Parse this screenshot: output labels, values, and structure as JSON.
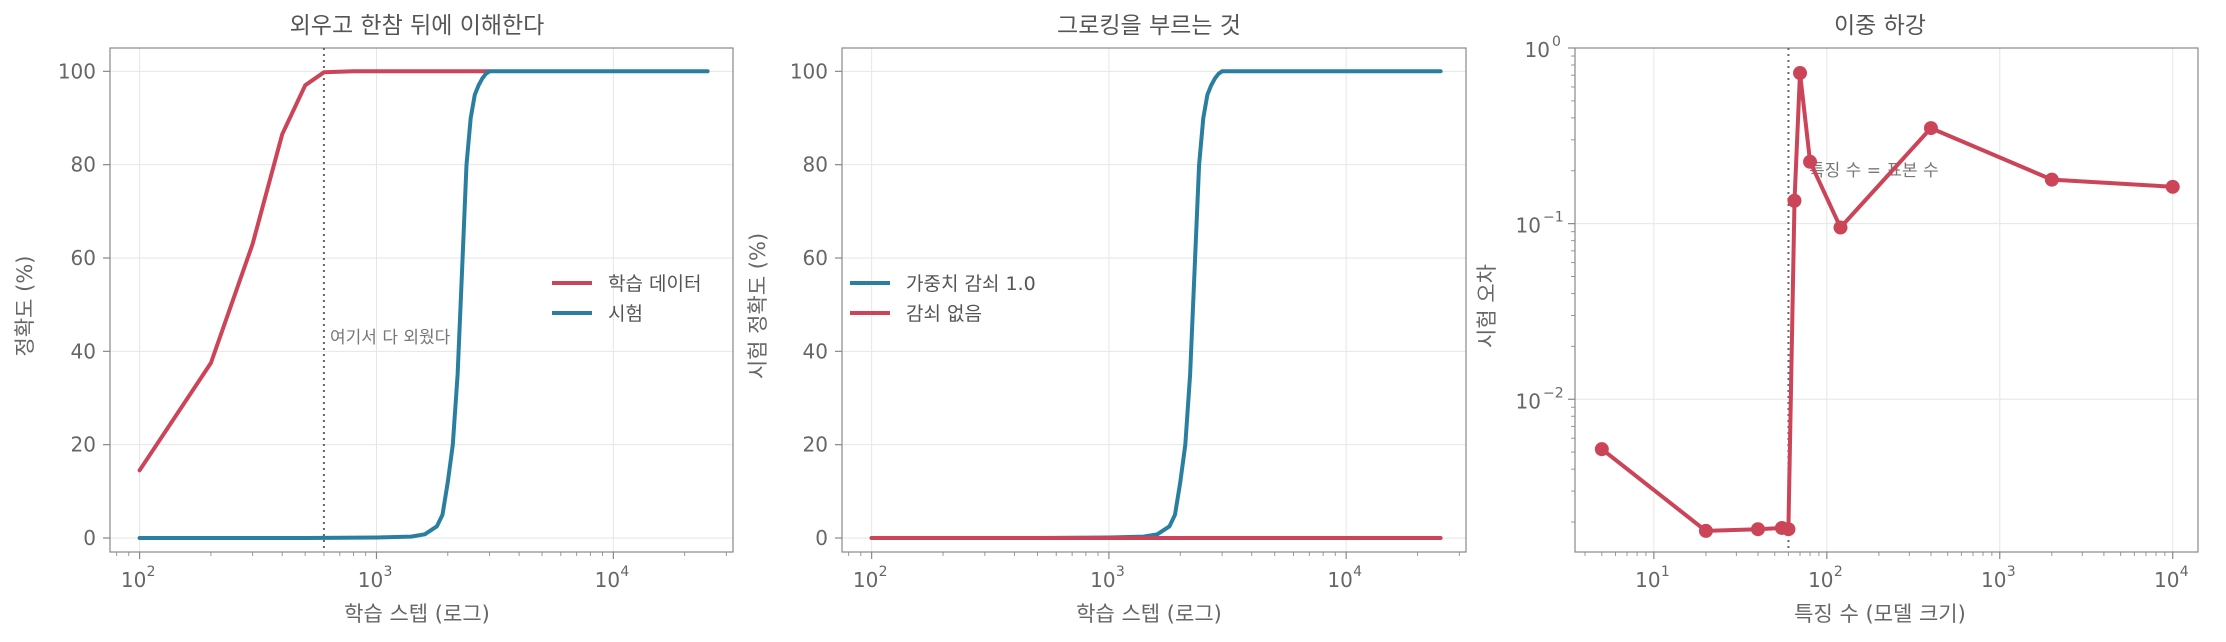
{
  "colors": {
    "red": "#cc4458",
    "blue": "#2a7fa0",
    "guide": "#666666"
  },
  "chart_data": [
    {
      "type": "line",
      "title": "외우고 한참 뒤에 이해한다",
      "xlabel": "학습 스텝 (로그)",
      "ylabel": "정확도 (%)",
      "xscale": "log",
      "xlim": [
        75,
        32000
      ],
      "ylim": [
        -3,
        105
      ],
      "yticks": [
        "0",
        "20",
        "40",
        "60",
        "80",
        "100"
      ],
      "xticks": [
        {
          "base": "10",
          "exp": "2"
        },
        {
          "base": "10",
          "exp": "3"
        },
        {
          "base": "10",
          "exp": "4"
        }
      ],
      "grid": true,
      "legend_position": "center-right",
      "vline": 600,
      "annotation": "여기서 다 외웠다",
      "series": [
        {
          "name": "학습 데이터",
          "color": "red",
          "x": [
            100,
            200,
            300,
            400,
            500,
            600,
            800,
            1000,
            1500,
            2000,
            3000
          ],
          "y": [
            14.5,
            37.5,
            63,
            86.5,
            97,
            99.8,
            100,
            100,
            100,
            100,
            100
          ]
        },
        {
          "name": "시험",
          "color": "blue",
          "x": [
            100,
            500,
            1000,
            1400,
            1600,
            1800,
            1900,
            2000,
            2100,
            2200,
            2300,
            2400,
            2500,
            2600,
            2700,
            2800,
            2900,
            3000,
            5000,
            10000,
            25000
          ],
          "y": [
            0,
            0,
            0.1,
            0.3,
            0.8,
            2.5,
            5,
            12,
            20,
            35,
            58,
            80,
            90,
            95,
            97,
            98.5,
            99.5,
            100,
            100,
            100,
            100
          ]
        }
      ]
    },
    {
      "type": "line",
      "title": "그로킹을 부르는 것",
      "xlabel": "학습 스텝 (로그)",
      "ylabel": "시험 정확도 (%)",
      "xscale": "log",
      "xlim": [
        75,
        32000
      ],
      "ylim": [
        -3,
        105
      ],
      "yticks": [
        "0",
        "20",
        "40",
        "60",
        "80",
        "100"
      ],
      "xticks": [
        {
          "base": "10",
          "exp": "2"
        },
        {
          "base": "10",
          "exp": "3"
        },
        {
          "base": "10",
          "exp": "4"
        }
      ],
      "grid": true,
      "legend_position": "center-left",
      "series": [
        {
          "name": "가중치 감쇠 1.0",
          "color": "blue",
          "x": [
            100,
            500,
            1000,
            1400,
            1600,
            1800,
            1900,
            2000,
            2100,
            2200,
            2300,
            2400,
            2500,
            2600,
            2700,
            2800,
            2900,
            3000,
            5000,
            10000,
            25000
          ],
          "y": [
            0,
            0,
            0.1,
            0.3,
            0.8,
            2.5,
            5,
            12,
            20,
            35,
            58,
            80,
            90,
            95,
            97,
            98.5,
            99.5,
            100,
            100,
            100,
            100
          ]
        },
        {
          "name": "감쇠 없음",
          "color": "red",
          "x": [
            100,
            1000,
            10000,
            25000
          ],
          "y": [
            0,
            0,
            0,
            0
          ]
        }
      ]
    },
    {
      "type": "line",
      "title": "이중 하강",
      "xlabel": "특징 수 (모델 크기)",
      "ylabel": "시험 오차",
      "xscale": "log",
      "yscale": "log",
      "xlim": [
        3.5,
        14000
      ],
      "ylim": [
        0.00135,
        1
      ],
      "xticks": [
        {
          "base": "10",
          "exp": "1"
        },
        {
          "base": "10",
          "exp": "2"
        },
        {
          "base": "10",
          "exp": "3"
        },
        {
          "base": "10",
          "exp": "4"
        }
      ],
      "yticks": [
        {
          "base": "10",
          "exp": "−2"
        },
        {
          "base": "10",
          "exp": "−1"
        },
        {
          "base": "10",
          "exp": "0"
        }
      ],
      "grid": true,
      "vline": 60,
      "annotation": "특징 수 = 표본 수",
      "series": [
        {
          "color": "red",
          "markers": true,
          "x": [
            5,
            20,
            40,
            55,
            60,
            65,
            70,
            80,
            120,
            400,
            2000,
            10000
          ],
          "y": [
            0.0052,
            0.00178,
            0.00182,
            0.00185,
            0.00182,
            0.135,
            0.72,
            0.225,
            0.095,
            0.35,
            0.178,
            0.162
          ]
        }
      ]
    }
  ]
}
